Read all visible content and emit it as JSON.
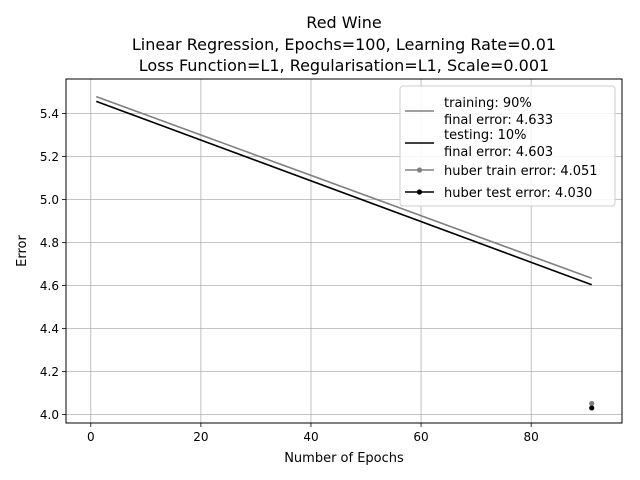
{
  "chart_data": {
    "type": "line",
    "title_lines": [
      "Red Wine",
      "Linear Regression, Epochs=100, Learning Rate=0.01",
      "Loss Function=L1, Regularisation=L1, Scale=0.001"
    ],
    "xlabel": "Number of Epochs",
    "ylabel": "Error",
    "xlim": [
      -4.5,
      96.5
    ],
    "ylim": [
      3.96,
      5.56
    ],
    "xticks": [
      0,
      20,
      40,
      60,
      80
    ],
    "yticks": [
      4.0,
      4.2,
      4.4,
      4.6,
      4.8,
      5.0,
      5.2,
      5.4
    ],
    "ytick_labels": [
      "4.0",
      "4.2",
      "4.4",
      "4.6",
      "4.8",
      "5.0",
      "5.2",
      "5.4"
    ],
    "grid": true,
    "legend_position": "top-right",
    "series": [
      {
        "kind": "line",
        "color": "#808080",
        "legend_lines": [
          "training: 90%",
          "final error: 4.633"
        ],
        "x": [
          1,
          91
        ],
        "y": [
          5.478,
          4.633
        ]
      },
      {
        "kind": "line",
        "color": "#000000",
        "legend_lines": [
          "testing: 10%",
          "final error: 4.603"
        ],
        "x": [
          1,
          91
        ],
        "y": [
          5.456,
          4.603
        ]
      },
      {
        "kind": "point",
        "color": "#808080",
        "legend_lines": [
          "huber train error: 4.051"
        ],
        "x": [
          91
        ],
        "y": [
          4.051
        ]
      },
      {
        "kind": "point",
        "color": "#000000",
        "legend_lines": [
          "huber test error: 4.030"
        ],
        "x": [
          91
        ],
        "y": [
          4.03
        ]
      }
    ]
  }
}
